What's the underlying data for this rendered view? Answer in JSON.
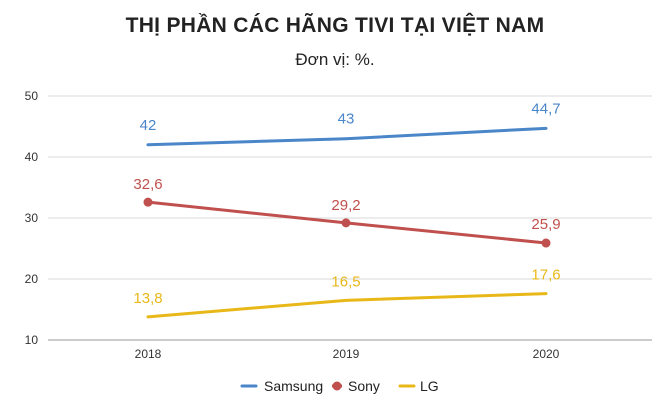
{
  "chart_data": {
    "type": "line",
    "title": "THỊ PHẦN CÁC HÃNG TIVI TẠI VIỆT NAM",
    "subtitle": "Đơn vị: %.",
    "categories": [
      "2018",
      "2019",
      "2020"
    ],
    "ylim": [
      10,
      50
    ],
    "yticks": [
      "10",
      "20",
      "30",
      "40",
      "50"
    ],
    "grid": true,
    "legend_position": "bottom",
    "series": [
      {
        "name": "Samsung",
        "color": "#4a86c8",
        "values": [
          42,
          43,
          44.7
        ],
        "labels": [
          "42",
          "43",
          "44,7"
        ],
        "markers": false
      },
      {
        "name": "Sony",
        "color": "#c0504d",
        "values": [
          32.6,
          29.2,
          25.9
        ],
        "labels": [
          "32,6",
          "29,2",
          "25,9"
        ],
        "markers": true
      },
      {
        "name": "LG",
        "color": "#e8b818",
        "values": [
          13.8,
          16.5,
          17.6
        ],
        "labels": [
          "13,8",
          "16,5",
          "17,6"
        ],
        "markers": false
      }
    ]
  }
}
